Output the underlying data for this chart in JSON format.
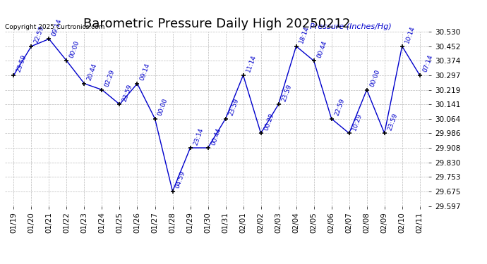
{
  "title": "Barometric Pressure Daily High 20250212",
  "copyright": "Copyright 2025 Curtronics.com",
  "ylabel": "Pressure (Inches/Hg)",
  "dates": [
    "01/19",
    "01/20",
    "01/21",
    "01/22",
    "01/23",
    "01/24",
    "01/25",
    "01/26",
    "01/27",
    "01/28",
    "01/29",
    "01/30",
    "01/31",
    "02/01",
    "02/02",
    "02/03",
    "02/04",
    "02/05",
    "02/06",
    "02/07",
    "02/08",
    "02/09",
    "02/10",
    "02/11"
  ],
  "values": [
    30.297,
    30.452,
    30.491,
    30.374,
    30.252,
    30.219,
    30.141,
    30.252,
    30.064,
    29.675,
    29.908,
    29.908,
    30.064,
    30.297,
    29.986,
    30.141,
    30.452,
    30.374,
    30.064,
    29.986,
    30.219,
    29.986,
    30.452,
    30.297
  ],
  "times": [
    "23:59",
    "22:59",
    "09:14",
    "00:00",
    "20:44",
    "02:29",
    "23:59",
    "09:14",
    "00:00",
    "04:59",
    "23:14",
    "00:44",
    "23:59",
    "11:14",
    "00:29",
    "23:59",
    "18:14",
    "00:44",
    "22:59",
    "10:29",
    "00:00",
    "23:59",
    "10:14",
    "07:14"
  ],
  "ylim_min": 29.597,
  "ylim_max": 30.53,
  "yticks": [
    29.597,
    29.675,
    29.753,
    29.83,
    29.908,
    29.986,
    30.064,
    30.141,
    30.219,
    30.297,
    30.374,
    30.452,
    30.53
  ],
  "line_color": "#0000cc",
  "marker_color": "#000000",
  "bg_color": "#ffffff",
  "grid_color": "#bbbbbb",
  "title_fontsize": 13,
  "tick_fontsize": 7.5,
  "annotation_fontsize": 6.5,
  "copyright_fontsize": 6.5,
  "ylabel_fontsize": 8
}
